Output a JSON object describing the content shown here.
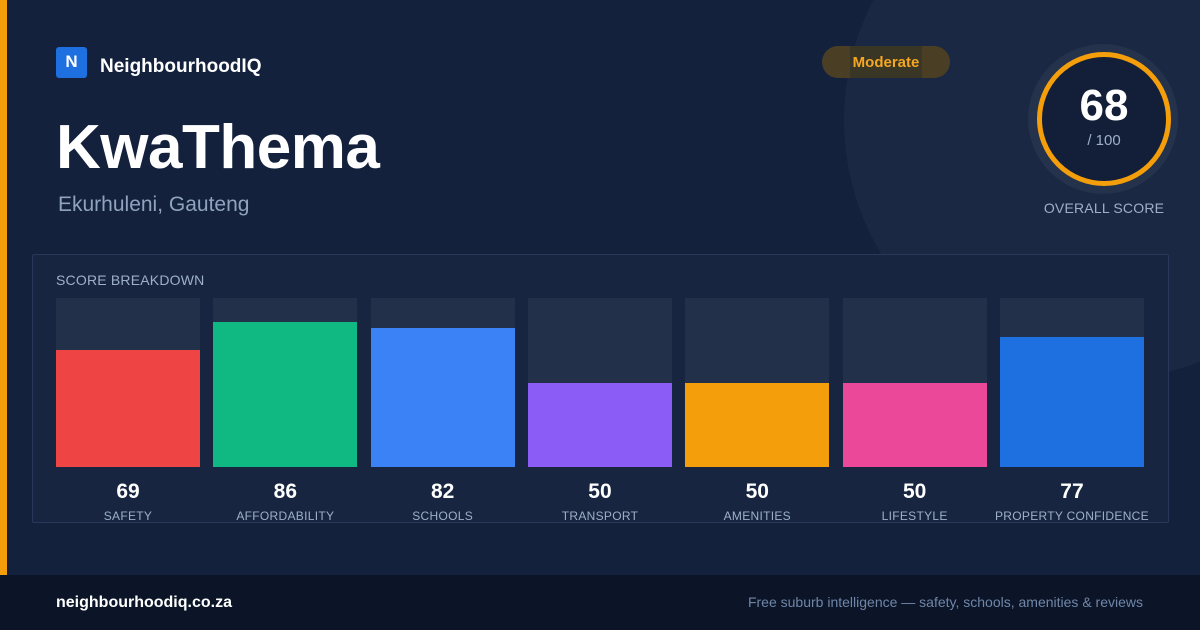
{
  "brand": {
    "logo_letter": "N",
    "name": "NeighbourhoodIQ"
  },
  "suburb": {
    "name": "KwaThema",
    "location": "Ekurhuleni, Gauteng"
  },
  "rating": {
    "badge": "Moderate",
    "score": "68",
    "max": "/ 100",
    "label": "OVERALL SCORE",
    "ring_color": "#f59e0b"
  },
  "breakdown": {
    "title": "SCORE BREAKDOWN",
    "max_value": 100,
    "items": [
      {
        "label": "SAFETY",
        "value": 69,
        "color": "#ef4444"
      },
      {
        "label": "AFFORDABILITY",
        "value": 86,
        "color": "#10b981"
      },
      {
        "label": "SCHOOLS",
        "value": 82,
        "color": "#3b82f6"
      },
      {
        "label": "TRANSPORT",
        "value": 50,
        "color": "#8b5cf6"
      },
      {
        "label": "AMENITIES",
        "value": 50,
        "color": "#f59e0b"
      },
      {
        "label": "LIFESTYLE",
        "value": 50,
        "color": "#ec4899"
      },
      {
        "label": "PROPERTY CONFIDENCE",
        "value": 77,
        "color": "#1e6fe0"
      }
    ]
  },
  "footer": {
    "domain": "neighbourhoodiq.co.za",
    "tagline": "Free suburb intelligence — safety, schools, amenities & reviews"
  }
}
